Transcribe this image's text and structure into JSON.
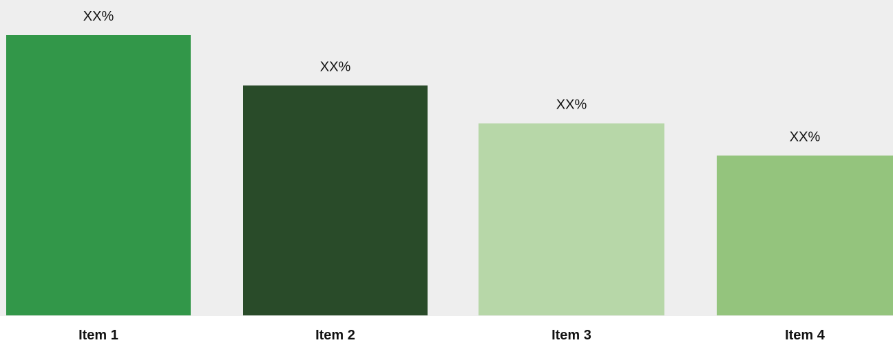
{
  "chart_data": {
    "type": "bar",
    "categories": [
      "Item 1",
      "Item 2",
      "Item 3",
      "Item 4"
    ],
    "values": [
      100,
      82,
      68.5,
      57
    ],
    "data_labels": [
      "XX%",
      "XX%",
      "XX%",
      "XX%"
    ],
    "colors": [
      "#329749",
      "#294b29",
      "#b7d7a8",
      "#94c47d"
    ],
    "background_color": "#eeeeee",
    "ylim": [
      0,
      100
    ],
    "title": "",
    "xlabel": "",
    "ylabel": "",
    "grid": false,
    "legend": "none"
  }
}
